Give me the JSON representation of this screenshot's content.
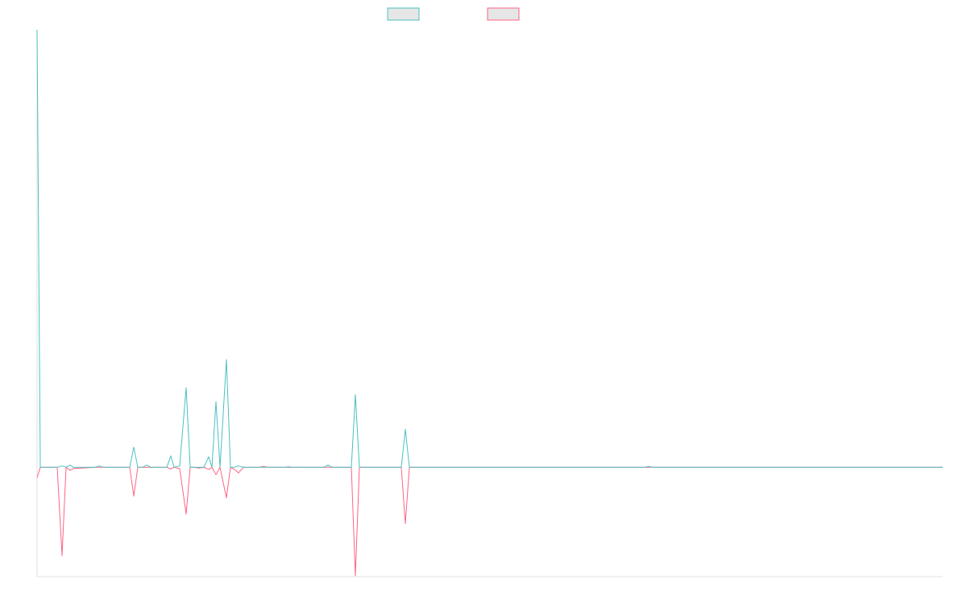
{
  "chart_data": {
    "type": "line",
    "x": [
      0,
      4,
      25,
      31,
      36,
      41,
      45,
      72,
      77,
      82,
      115,
      120,
      125,
      131,
      136,
      141,
      161,
      166,
      170,
      177,
      185,
      190,
      195,
      201,
      207,
      213,
      217,
      222,
      227,
      235,
      240,
      245,
      250,
      256,
      276,
      281,
      286,
      307,
      312,
      317,
      356,
      361,
      366,
      390,
      395,
      400,
      452,
      457,
      462,
      754,
      759,
      764,
      1124
    ],
    "series": [
      {
        "color": "#ff6384",
        "values": [
          -2.4,
          0,
          0,
          -20.2,
          0,
          -0.7,
          -0.3,
          0,
          0,
          0,
          0,
          -6.6,
          0,
          0,
          0,
          0,
          0,
          -0.4,
          0,
          -0.3,
          -10.7,
          0,
          0,
          -0.2,
          0,
          -0.5,
          0,
          -1.7,
          0,
          -7,
          0,
          -0.5,
          -1.3,
          0,
          0,
          0.2,
          0,
          0,
          0,
          0,
          0,
          0,
          0,
          0,
          -24.8,
          0,
          0,
          -12.9,
          0,
          0,
          0,
          0,
          0
        ]
      },
      {
        "color": "#4bc0c0",
        "values": [
          100,
          0,
          0,
          0.3,
          0,
          0.5,
          0,
          0,
          0.3,
          0,
          0,
          4.6,
          0,
          0,
          0.5,
          0,
          0,
          2.6,
          0,
          0.3,
          18.2,
          0,
          0,
          0,
          0,
          2.4,
          0,
          15,
          0,
          24.6,
          0,
          0,
          0.3,
          0,
          0,
          0,
          0,
          0,
          0.1,
          0,
          0,
          0.5,
          0,
          0,
          16.6,
          0,
          0,
          8.7,
          0,
          0,
          0.2,
          0,
          0
        ]
      }
    ],
    "xlim": [
      0,
      1124
    ],
    "ylim": [
      -25,
      100
    ]
  }
}
